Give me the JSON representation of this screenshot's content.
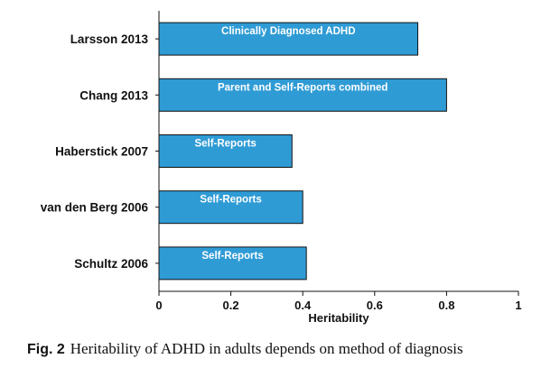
{
  "chart_data": {
    "type": "bar",
    "orientation": "horizontal",
    "categories": [
      "Larsson 2013",
      "Chang 2013",
      "Haberstick 2007",
      "van den Berg 2006",
      "Schultz 2006"
    ],
    "values": [
      0.72,
      0.8,
      0.37,
      0.4,
      0.41
    ],
    "bar_labels": [
      "Clinically Diagnosed ADHD",
      "Parent and Self-Reports combined",
      "Self-Reports",
      "Self-Reports",
      "Self-Reports"
    ],
    "xlabel": "Heritability",
    "xlim": [
      0,
      1
    ],
    "xticks": [
      "0",
      "0.2",
      "0.4",
      "0.6",
      "0.8",
      "1"
    ],
    "bar_color": "#2f9bd5",
    "grid": false
  },
  "caption": {
    "prefix": "Fig. 2",
    "text": "Heritability of ADHD in adults depends on method of diagnosis"
  }
}
